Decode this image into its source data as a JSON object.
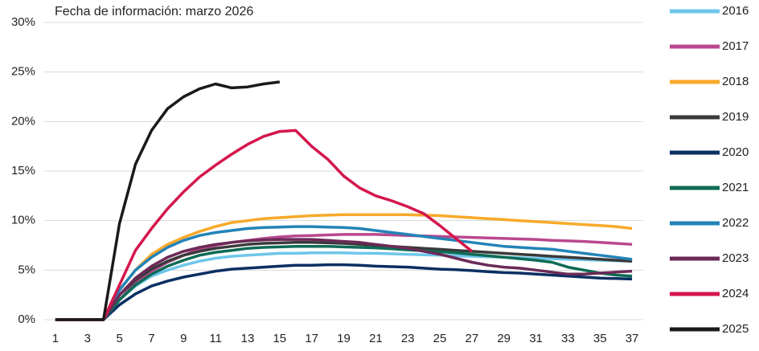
{
  "chart_data": {
    "type": "line",
    "annotation": "Fecha de información: marzo 2026",
    "x": [
      1,
      2,
      3,
      4,
      5,
      6,
      7,
      8,
      9,
      10,
      11,
      12,
      13,
      14,
      15,
      16,
      17,
      18,
      19,
      20,
      21,
      22,
      23,
      24,
      25,
      26,
      27,
      28,
      29,
      30,
      31,
      32,
      33,
      34,
      35,
      36,
      37
    ],
    "xlim": [
      0.3,
      37.7
    ],
    "xticks": [
      1,
      3,
      5,
      7,
      9,
      11,
      13,
      15,
      17,
      19,
      21,
      23,
      25,
      27,
      29,
      31,
      33,
      35,
      37
    ],
    "ylim": [
      0,
      30
    ],
    "yticks": [
      {
        "value": 0,
        "label": "0%"
      },
      {
        "value": 5,
        "label": "5%"
      },
      {
        "value": 10,
        "label": "10%"
      },
      {
        "value": 15,
        "label": "15%"
      },
      {
        "value": 20,
        "label": "20%"
      },
      {
        "value": 25,
        "label": "25%"
      },
      {
        "value": 30,
        "label": "30%"
      }
    ],
    "grid": true,
    "legend": "right",
    "series": [
      {
        "name": "2016",
        "color": "#6ec6ea",
        "values": [
          0,
          0,
          0,
          0,
          2,
          3.4,
          4.4,
          5.0,
          5.5,
          5.9,
          6.2,
          6.4,
          6.5,
          6.6,
          6.7,
          6.7,
          6.75,
          6.75,
          6.75,
          6.7,
          6.7,
          6.65,
          6.6,
          6.55,
          6.5,
          6.45,
          6.4,
          6.35,
          6.3,
          6.25,
          6.2,
          6.15,
          6.1,
          6.05,
          6.0,
          5.95,
          5.9
        ]
      },
      {
        "name": "2017",
        "color": "#b9488f",
        "values": [
          0,
          0,
          0,
          0,
          2,
          3.7,
          4.9,
          5.8,
          6.5,
          7.1,
          7.5,
          7.8,
          8.0,
          8.2,
          8.35,
          8.45,
          8.5,
          8.55,
          8.6,
          8.6,
          8.6,
          8.55,
          8.5,
          8.45,
          8.4,
          8.35,
          8.3,
          8.25,
          8.2,
          8.15,
          8.1,
          8.0,
          7.95,
          7.9,
          7.8,
          7.7,
          7.6
        ]
      },
      {
        "name": "2018",
        "color": "#f8a92a",
        "values": [
          0,
          0,
          0,
          0,
          3,
          5,
          6.6,
          7.6,
          8.3,
          8.9,
          9.4,
          9.8,
          10.0,
          10.2,
          10.3,
          10.4,
          10.5,
          10.55,
          10.6,
          10.6,
          10.6,
          10.6,
          10.6,
          10.55,
          10.5,
          10.4,
          10.3,
          10.2,
          10.1,
          10.0,
          9.9,
          9.8,
          9.7,
          9.6,
          9.5,
          9.4,
          9.2
        ]
      },
      {
        "name": "2019",
        "color": "#3a3a3a",
        "values": [
          0,
          0,
          0,
          0,
          2.5,
          4,
          5.1,
          5.9,
          6.5,
          6.9,
          7.2,
          7.4,
          7.6,
          7.7,
          7.75,
          7.8,
          7.8,
          7.75,
          7.7,
          7.6,
          7.5,
          7.4,
          7.3,
          7.2,
          7.1,
          7.0,
          6.9,
          6.8,
          6.7,
          6.6,
          6.5,
          6.4,
          6.3,
          6.2,
          6.1,
          6.0,
          5.9
        ]
      },
      {
        "name": "2020",
        "color": "#0a2f62",
        "values": [
          0,
          0,
          0,
          0,
          1.5,
          2.6,
          3.4,
          3.9,
          4.3,
          4.6,
          4.9,
          5.1,
          5.2,
          5.3,
          5.4,
          5.5,
          5.5,
          5.55,
          5.55,
          5.5,
          5.4,
          5.35,
          5.3,
          5.2,
          5.1,
          5.05,
          4.95,
          4.85,
          4.75,
          4.7,
          4.6,
          4.5,
          4.4,
          4.3,
          4.2,
          4.15,
          4.1
        ]
      },
      {
        "name": "2021",
        "color": "#0d6b55",
        "values": [
          0,
          0,
          0,
          0,
          2,
          3.5,
          4.6,
          5.4,
          6.0,
          6.5,
          6.8,
          7.0,
          7.2,
          7.3,
          7.35,
          7.4,
          7.4,
          7.4,
          7.35,
          7.3,
          7.25,
          7.15,
          7.05,
          6.95,
          6.85,
          6.75,
          6.6,
          6.45,
          6.3,
          6.15,
          6.0,
          5.8,
          5.3,
          5.0,
          4.7,
          4.5,
          4.4
        ]
      },
      {
        "name": "2022",
        "color": "#2383b7",
        "values": [
          0,
          0,
          0,
          0,
          3,
          5,
          6.3,
          7.3,
          8.0,
          8.5,
          8.8,
          9.0,
          9.2,
          9.3,
          9.35,
          9.4,
          9.4,
          9.35,
          9.3,
          9.2,
          9.0,
          8.8,
          8.6,
          8.4,
          8.2,
          8.0,
          7.8,
          7.6,
          7.4,
          7.3,
          7.2,
          7.1,
          6.9,
          6.7,
          6.5,
          6.3,
          6.1
        ]
      },
      {
        "name": "2023",
        "color": "#6b2a57",
        "values": [
          0,
          0,
          0,
          0,
          2.5,
          4.2,
          5.4,
          6.3,
          6.9,
          7.3,
          7.6,
          7.8,
          7.95,
          8.05,
          8.1,
          8.1,
          8.1,
          8.0,
          7.9,
          7.8,
          7.6,
          7.4,
          7.2,
          6.9,
          6.6,
          6.2,
          5.8,
          5.5,
          5.3,
          5.2,
          5.0,
          4.8,
          4.6,
          4.6,
          4.7,
          4.8,
          4.9
        ]
      },
      {
        "name": "2024",
        "color": "#d4164b",
        "values": [
          0,
          0,
          0,
          0,
          3.5,
          7,
          9.2,
          11.2,
          12.9,
          14.4,
          15.6,
          16.7,
          17.7,
          18.5,
          19.0,
          19.1,
          17.5,
          16.2,
          14.5,
          13.3,
          12.5,
          12.0,
          11.4,
          10.7,
          9.5,
          8.2,
          6.9,
          null,
          null,
          null,
          null,
          null,
          null,
          null,
          null,
          null,
          null
        ]
      },
      {
        "name": "2025",
        "color": "#1a1a1a",
        "values": [
          0,
          0,
          0,
          0,
          9.7,
          15.7,
          19.1,
          21.3,
          22.5,
          23.3,
          23.8,
          23.4,
          23.5,
          23.8,
          24.0,
          null,
          null,
          null,
          null,
          null,
          null,
          null,
          null,
          null,
          null,
          null,
          null,
          null,
          null,
          null,
          null,
          null,
          null,
          null,
          null,
          null,
          null
        ]
      }
    ]
  }
}
